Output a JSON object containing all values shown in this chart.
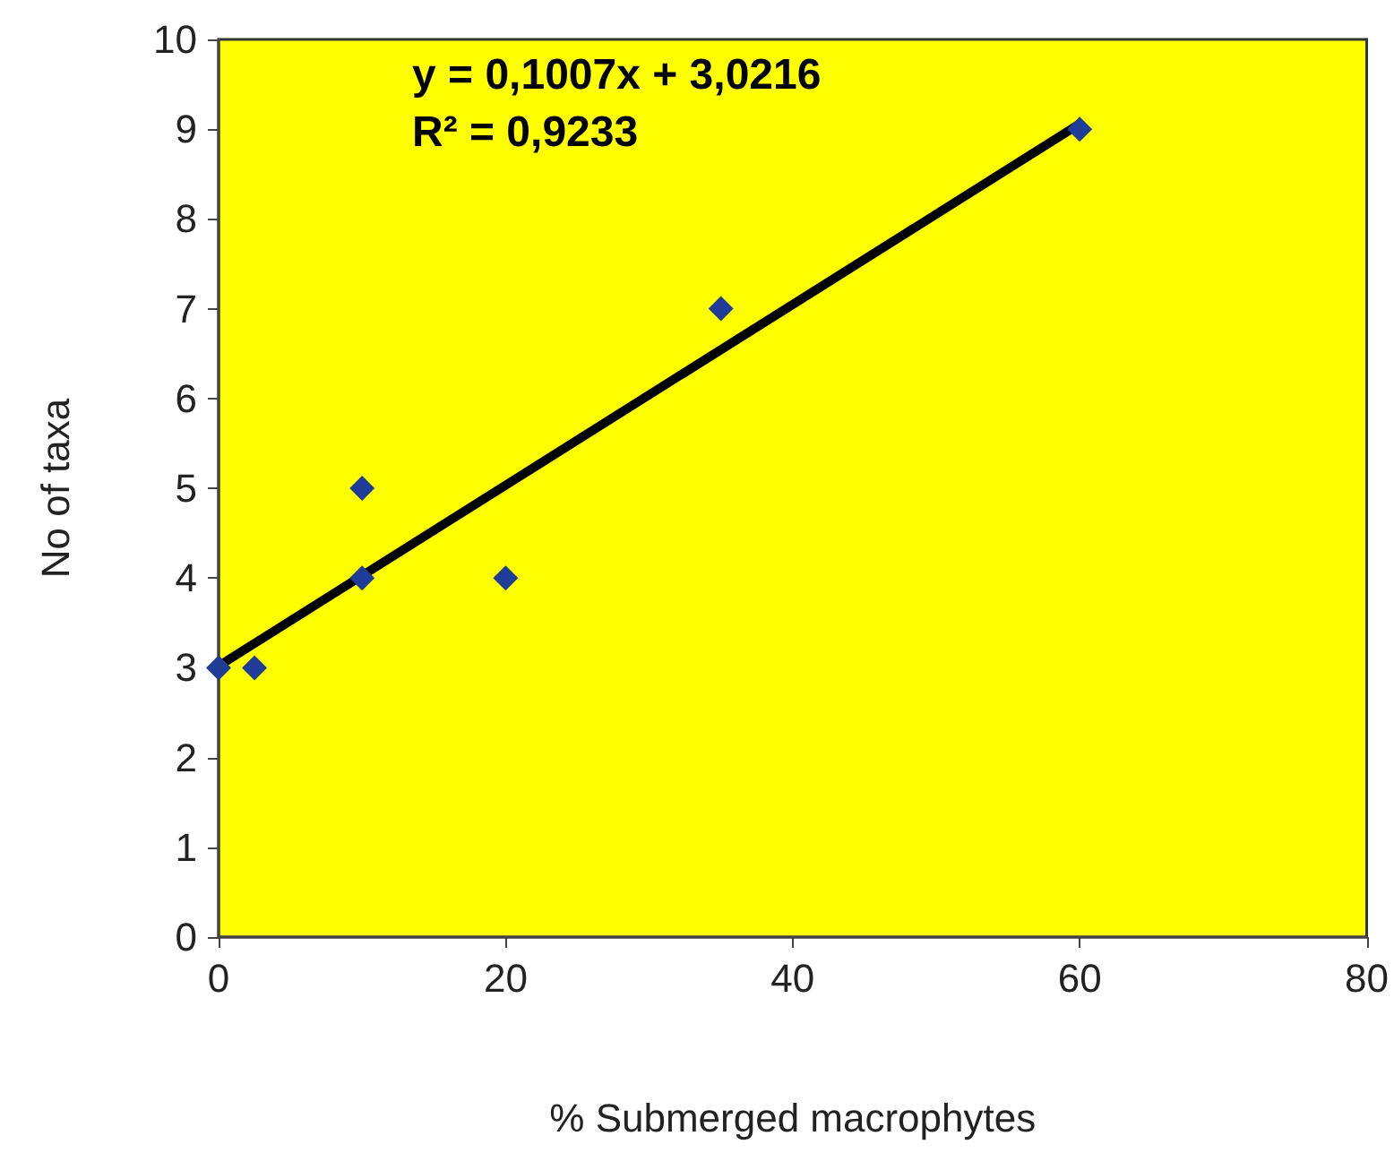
{
  "chart_data": {
    "type": "scatter",
    "xlabel": "% Submerged macrophytes",
    "ylabel": "No of taxa",
    "annotations": [
      "y = 0,1007x + 3,0216",
      "R² = 0,9233"
    ],
    "series": [
      {
        "color": "#1f3c96",
        "x": [
          0,
          2.5,
          10,
          10,
          20,
          35,
          60
        ],
        "values": [
          3,
          3,
          4,
          5,
          4,
          7,
          9
        ]
      },
      {
        "type": "line",
        "color": "#000000",
        "x": [
          0,
          60
        ],
        "values": [
          3.02,
          9.06
        ],
        "marker": "none"
      }
    ],
    "marker": "diamond",
    "grid": false,
    "xlim": [
      0,
      80
    ],
    "xticks": [
      0,
      20,
      40,
      60,
      80
    ],
    "ylim": [
      0,
      10
    ],
    "yticks": [
      0,
      1,
      2,
      3,
      4,
      5,
      6,
      7,
      8,
      9,
      10
    ]
  }
}
